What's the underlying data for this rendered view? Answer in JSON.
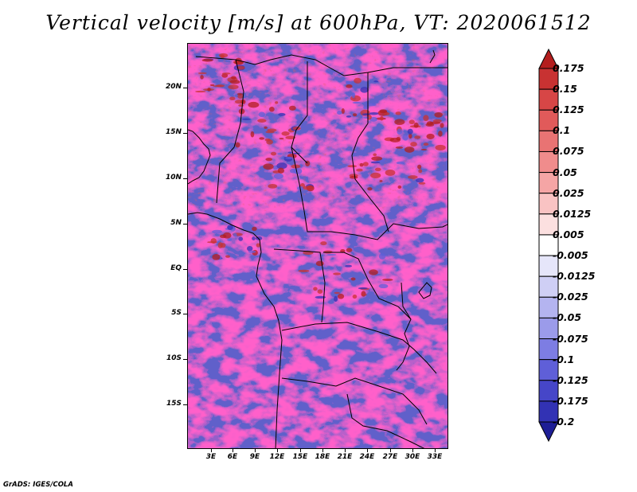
{
  "title": "Vertical velocity [m/s] at 600hPa, VT: 2020061512",
  "footer": "GrADS: IGES/COLA",
  "axes": {
    "y_ticks": [
      "20N",
      "15N",
      "10N",
      "5N",
      "EQ",
      "5S",
      "10S",
      "15S"
    ],
    "x_ticks": [
      "3E",
      "6E",
      "9E",
      "12E",
      "15E",
      "18E",
      "21E",
      "24E",
      "27E",
      "30E",
      "33E"
    ]
  },
  "colorbar": {
    "labels": [
      "0.175",
      "0.15",
      "0.125",
      "0.1",
      "0.075",
      "0.05",
      "0.025",
      "0.0125",
      "0.005",
      "-0.005",
      "-0.0125",
      "-0.025",
      "-0.05",
      "-0.075",
      "-0.1",
      "-0.125",
      "-0.175",
      "-0.2"
    ],
    "colors": [
      "#b41e1e",
      "#c83232",
      "#d74646",
      "#e15a5a",
      "#e97373",
      "#f08c8c",
      "#f5a5a5",
      "#f9c3c3",
      "#fce0e0",
      "#ffffff",
      "#e6e6fa",
      "#cfcff5",
      "#b4b4f0",
      "#9b9bea",
      "#7d7de3",
      "#5f5fd8",
      "#4646c8",
      "#3232b4",
      "#1e1e96"
    ]
  },
  "colors": {
    "uplift_max": "#b41e1e",
    "subsidence_max": "#1e1e96",
    "neutral": "#ffffff",
    "boundaries": "#000000"
  }
}
